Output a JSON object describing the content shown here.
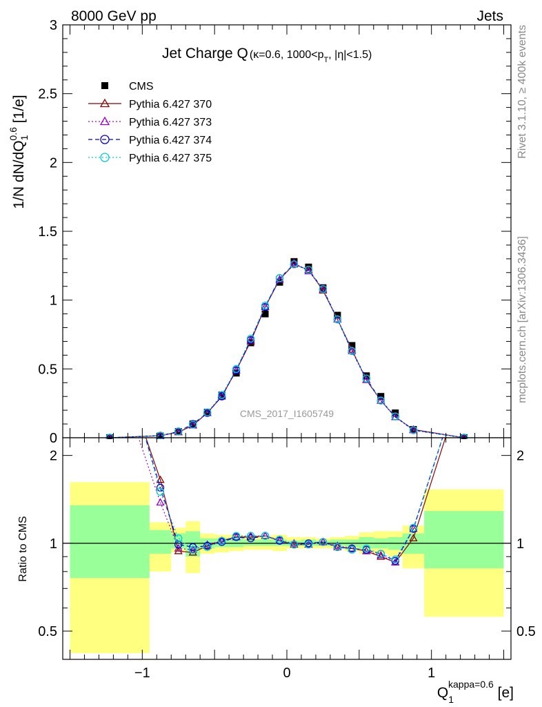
{
  "header": {
    "left": "8000 GeV pp",
    "right": "Jets"
  },
  "side_text": {
    "rivet": "Rivet 3.1.10, ≥ 400k events",
    "mcplots": "mcplots.cern.ch [arXiv:1306.3436]"
  },
  "watermark": "CMS_2017_I1605749",
  "chart_data": [
    {
      "panel": "main",
      "type": "scatter",
      "title_main": "Jet Charge Q",
      "title_detail": "(κ=0.6, 1000<p",
      "title_sub": "T",
      "title_tail": ", |η|<1.5)",
      "ylabel": "1/N dN/dQ",
      "ylabel_sub": "1",
      "ylabel_sup": "0.6",
      "ylabel_unit": " [1/e]",
      "ylim": [
        0,
        3
      ],
      "xlim": [
        -1.55,
        1.55
      ],
      "yticks": [
        "0",
        "0.5",
        "1",
        "1.5",
        "2",
        "2.5",
        "3"
      ],
      "series": [
        {
          "name": "CMS",
          "color": "#000000",
          "style": "data",
          "x": [
            -1.225,
            -0.875,
            -0.75,
            -0.65,
            -0.55,
            -0.45,
            -0.35,
            -0.25,
            -0.15,
            -0.05,
            0.05,
            0.15,
            0.25,
            0.35,
            0.45,
            0.55,
            0.65,
            0.75,
            0.875,
            1.225
          ],
          "y": [
            0.0,
            0.012,
            0.045,
            0.1,
            0.185,
            0.31,
            0.47,
            0.69,
            0.9,
            1.13,
            1.28,
            1.24,
            1.09,
            0.89,
            0.67,
            0.45,
            0.3,
            0.18,
            0.06,
            0.0
          ]
        },
        {
          "name": "Pythia 6.427 370",
          "color": "#8b0000",
          "style": "solid",
          "marker": "triangle",
          "x": [
            -1.225,
            -0.875,
            -0.75,
            -0.65,
            -0.55,
            -0.45,
            -0.35,
            -0.25,
            -0.15,
            -0.05,
            0.05,
            0.15,
            0.25,
            0.35,
            0.45,
            0.55,
            0.65,
            0.75,
            0.875,
            1.225
          ],
          "y": [
            0.0,
            0.015,
            0.04,
            0.09,
            0.18,
            0.3,
            0.49,
            0.7,
            0.95,
            1.15,
            1.26,
            1.22,
            1.07,
            0.86,
            0.64,
            0.42,
            0.27,
            0.15,
            0.06,
            0.0
          ]
        },
        {
          "name": "Pythia 6.427 373",
          "color": "#9400d3",
          "style": "dotted",
          "marker": "triangle",
          "x": [
            -1.225,
            -0.875,
            -0.75,
            -0.65,
            -0.55,
            -0.45,
            -0.35,
            -0.25,
            -0.15,
            -0.05,
            0.05,
            0.15,
            0.25,
            0.35,
            0.45,
            0.55,
            0.65,
            0.75,
            0.875,
            1.225
          ],
          "y": [
            0.0,
            0.014,
            0.042,
            0.095,
            0.18,
            0.31,
            0.49,
            0.71,
            0.95,
            1.15,
            1.27,
            1.21,
            1.08,
            0.86,
            0.63,
            0.42,
            0.27,
            0.15,
            0.055,
            0.0
          ]
        },
        {
          "name": "Pythia 6.427 374",
          "color": "#0000cd",
          "style": "dashed",
          "marker": "circle",
          "x": [
            -1.225,
            -0.875,
            -0.75,
            -0.65,
            -0.55,
            -0.45,
            -0.35,
            -0.25,
            -0.15,
            -0.05,
            0.05,
            0.15,
            0.25,
            0.35,
            0.45,
            0.55,
            0.65,
            0.75,
            0.875,
            1.225
          ],
          "y": [
            0.0,
            0.015,
            0.045,
            0.1,
            0.18,
            0.3,
            0.49,
            0.71,
            0.95,
            1.16,
            1.26,
            1.22,
            1.08,
            0.86,
            0.63,
            0.43,
            0.27,
            0.155,
            0.055,
            0.0
          ]
        },
        {
          "name": "Pythia 6.427 375",
          "color": "#00ced1",
          "style": "dotted",
          "marker": "circle",
          "x": [
            -1.225,
            -0.875,
            -0.75,
            -0.65,
            -0.55,
            -0.45,
            -0.35,
            -0.25,
            -0.15,
            -0.05,
            0.05,
            0.15,
            0.25,
            0.35,
            0.45,
            0.55,
            0.65,
            0.75,
            0.875,
            1.225
          ],
          "y": [
            0.0,
            0.015,
            0.046,
            0.095,
            0.185,
            0.31,
            0.5,
            0.72,
            0.96,
            1.16,
            1.26,
            1.22,
            1.08,
            0.86,
            0.63,
            0.43,
            0.27,
            0.155,
            0.055,
            0.0
          ]
        }
      ]
    },
    {
      "panel": "ratio",
      "type": "line",
      "ylabel": "Ratio to CMS",
      "xlabel": "Q",
      "xlabel_sub": "1",
      "xlabel_sup": "kappa=0.6",
      "xlabel_unit": " [e]",
      "ylim": [
        0.4,
        2.3
      ],
      "log_y": true,
      "xlim": [
        -1.55,
        1.55
      ],
      "xticks": [
        "−1",
        "0",
        "1"
      ],
      "yticks": [
        "0.5",
        "1",
        "2"
      ],
      "bands": [
        {
          "x0": -1.5,
          "x1": -0.95,
          "g0": 0.76,
          "g1": 1.35,
          "y0": 0.42,
          "y1": 1.62
        },
        {
          "x0": -0.95,
          "x1": -0.8,
          "g0": 0.92,
          "g1": 1.11,
          "y0": 0.8,
          "y1": 1.18
        },
        {
          "x0": -0.8,
          "x1": -0.7,
          "g0": 0.96,
          "g1": 1.08,
          "y0": 0.93,
          "y1": 1.13
        },
        {
          "x0": -0.7,
          "x1": -0.6,
          "g0": 0.9,
          "g1": 1.1,
          "y0": 0.79,
          "y1": 1.19
        },
        {
          "x0": -0.6,
          "x1": -0.5,
          "g0": 0.96,
          "g1": 1.04,
          "y0": 0.92,
          "y1": 1.08
        },
        {
          "x0": -0.5,
          "x1": -0.4,
          "g0": 0.97,
          "g1": 1.04,
          "y0": 0.93,
          "y1": 1.07
        },
        {
          "x0": -0.4,
          "x1": -0.3,
          "g0": 0.97,
          "g1": 1.04,
          "y0": 0.94,
          "y1": 1.07
        },
        {
          "x0": -0.3,
          "x1": -0.2,
          "g0": 0.98,
          "g1": 1.03,
          "y0": 0.95,
          "y1": 1.06
        },
        {
          "x0": -0.2,
          "x1": -0.1,
          "g0": 0.98,
          "g1": 1.03,
          "y0": 0.95,
          "y1": 1.06
        },
        {
          "x0": -0.1,
          "x1": 0.0,
          "g0": 0.98,
          "g1": 1.03,
          "y0": 0.94,
          "y1": 1.07
        },
        {
          "x0": 0.0,
          "x1": 0.1,
          "g0": 0.98,
          "g1": 1.02,
          "y0": 0.96,
          "y1": 1.05
        },
        {
          "x0": 0.1,
          "x1": 0.2,
          "g0": 0.98,
          "g1": 1.03,
          "y0": 0.96,
          "y1": 1.05
        },
        {
          "x0": 0.2,
          "x1": 0.3,
          "g0": 0.98,
          "g1": 1.02,
          "y0": 0.96,
          "y1": 1.04
        },
        {
          "x0": 0.3,
          "x1": 0.4,
          "g0": 0.98,
          "g1": 1.03,
          "y0": 0.96,
          "y1": 1.05
        },
        {
          "x0": 0.4,
          "x1": 0.5,
          "g0": 0.97,
          "g1": 1.03,
          "y0": 0.94,
          "y1": 1.06
        },
        {
          "x0": 0.5,
          "x1": 0.6,
          "g0": 0.96,
          "g1": 1.05,
          "y0": 0.92,
          "y1": 1.09
        },
        {
          "x0": 0.6,
          "x1": 0.7,
          "g0": 0.96,
          "g1": 1.04,
          "y0": 0.92,
          "y1": 1.1
        },
        {
          "x0": 0.7,
          "x1": 0.8,
          "g0": 0.95,
          "g1": 1.05,
          "y0": 0.9,
          "y1": 1.1
        },
        {
          "x0": 0.8,
          "x1": 0.95,
          "g0": 0.92,
          "g1": 1.08,
          "y0": 0.82,
          "y1": 1.15
        },
        {
          "x0": 0.95,
          "x1": 1.5,
          "g0": 0.82,
          "g1": 1.29,
          "y0": 0.56,
          "y1": 1.53
        }
      ],
      "series": [
        {
          "name": "Pythia 6.427 370",
          "color": "#8b0000",
          "style": "solid",
          "marker": "triangle",
          "x": [
            -1.0,
            -0.875,
            -0.75,
            -0.65,
            -0.55,
            -0.45,
            -0.35,
            -0.25,
            -0.15,
            -0.05,
            0.05,
            0.15,
            0.25,
            0.35,
            0.45,
            0.55,
            0.65,
            0.75,
            0.875,
            1.12
          ],
          "y": [
            2.5,
            1.65,
            0.94,
            0.93,
            0.98,
            1.02,
            1.05,
            1.05,
            1.06,
            1.02,
            0.99,
            0.99,
            1.01,
            0.97,
            0.96,
            0.94,
            0.9,
            0.86,
            1.04,
            2.5
          ]
        },
        {
          "name": "Pythia 6.427 373",
          "color": "#9400d3",
          "style": "dotted",
          "marker": "triangle",
          "x": [
            -1.05,
            -0.875,
            -0.75,
            -0.65,
            -0.55,
            -0.45,
            -0.35,
            -0.25,
            -0.15,
            -0.05,
            0.05,
            0.15,
            0.25,
            0.35,
            0.45,
            0.55,
            0.65,
            0.75,
            0.875,
            1.1
          ],
          "y": [
            2.5,
            1.38,
            0.96,
            0.95,
            0.99,
            1.02,
            1.05,
            1.06,
            1.06,
            1.02,
            1.0,
            0.99,
            1.01,
            0.98,
            0.96,
            0.94,
            0.91,
            0.86,
            1.12,
            2.5
          ]
        },
        {
          "name": "Pythia 6.427 374",
          "color": "#0000cd",
          "style": "dashed",
          "marker": "circle",
          "x": [
            -1.0,
            -0.875,
            -0.75,
            -0.65,
            -0.55,
            -0.45,
            -0.35,
            -0.25,
            -0.15,
            -0.05,
            0.05,
            0.15,
            0.25,
            0.35,
            0.45,
            0.55,
            0.65,
            0.75,
            0.875,
            1.1
          ],
          "y": [
            2.5,
            1.55,
            0.99,
            0.97,
            0.98,
            1.01,
            1.05,
            1.04,
            1.06,
            1.02,
            0.99,
            1.0,
            1.01,
            0.97,
            0.96,
            0.95,
            0.92,
            0.87,
            1.12,
            2.5
          ]
        },
        {
          "name": "Pythia 6.427 375",
          "color": "#00ced1",
          "style": "dotted",
          "marker": "circle",
          "x": [
            -1.0,
            -0.875,
            -0.75,
            -0.65,
            -0.55,
            -0.45,
            -0.35,
            -0.25,
            -0.15,
            -0.05,
            0.05,
            0.15,
            0.25,
            0.35,
            0.45,
            0.55,
            0.65,
            0.75,
            0.875,
            1.1
          ],
          "y": [
            2.5,
            1.5,
            1.04,
            0.95,
            0.97,
            1.02,
            1.06,
            1.06,
            1.06,
            1.03,
            0.99,
            0.99,
            1.01,
            0.97,
            0.95,
            0.96,
            0.92,
            0.88,
            1.13,
            2.5
          ]
        }
      ]
    }
  ]
}
